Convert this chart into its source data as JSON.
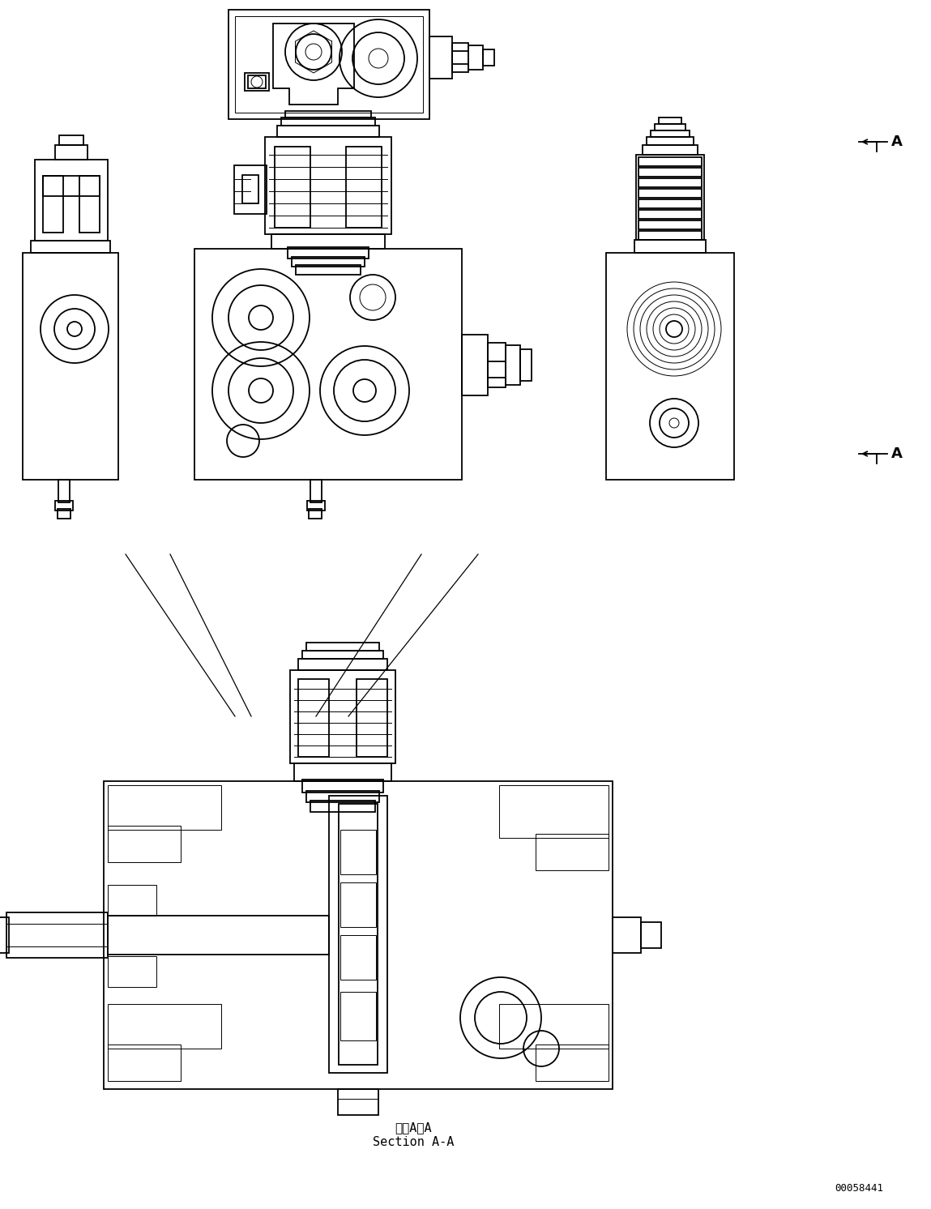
{
  "bg_color": "#ffffff",
  "line_color": "#000000",
  "lw": 1.3,
  "tlw": 0.7,
  "fig_width": 11.49,
  "fig_height": 14.92,
  "section_text_line1": "断面A－A",
  "section_text_line2": "Section A-A",
  "part_number": "00058441"
}
